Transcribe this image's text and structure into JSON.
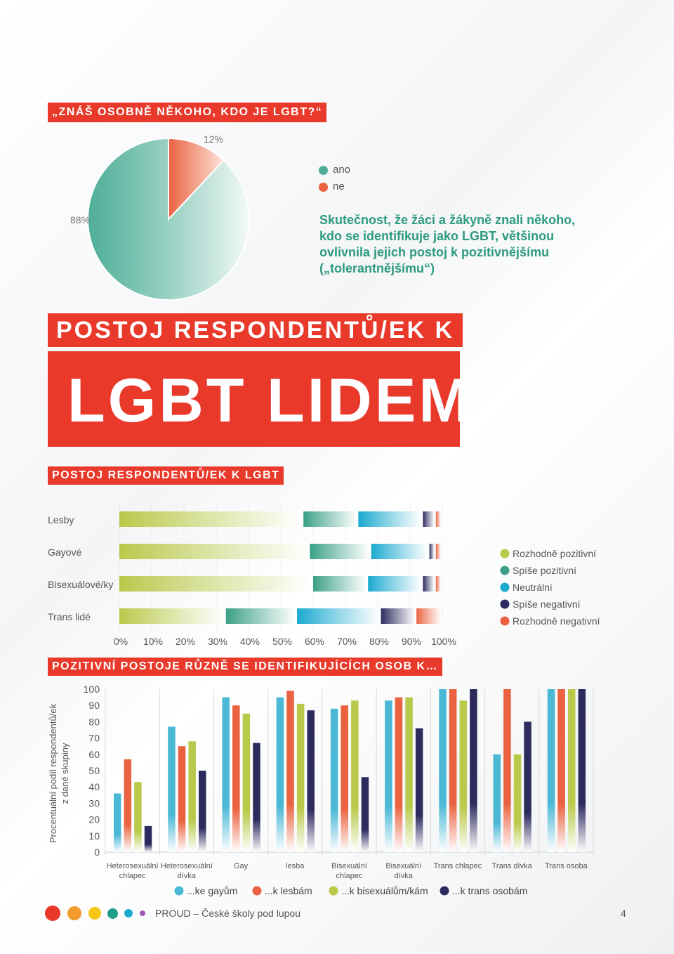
{
  "colors": {
    "red": "#e8392a",
    "teal": "#2d9b7c",
    "lime": "#b9c94a",
    "teal2": "#3a9f86",
    "cyan": "#1aa9cf",
    "navy": "#2d2a5e",
    "orange": "#ea6240",
    "lightblue": "#4bb8d6"
  },
  "pie_section": {
    "title": "„ZNÁŠ OSOBNĚ NĚKOHO, KDO JE LGBT?“",
    "note": "Skutečnost, že žáci a žákyně znali někoho, kdo se identifikuje jako LGBT, většinou ovlivnila jejich postoj k pozitivnějšímu („tolerantnějšímu“)"
  },
  "headline": {
    "line1": "POSTOJ RESPONDENTŮ/EK K",
    "line2": "LGBT LIDEM"
  },
  "bar_section": {
    "title": "POSTOJ RESPONDENTŮ/EK K LGBT"
  },
  "column_section": {
    "title": "POZITIVNÍ POSTOJE RŮZNĚ SE IDENTIFIKUJÍCÍCH OSOB K…"
  },
  "footer": {
    "text": "PROUD – České školy pod lupou",
    "page": "4",
    "dots": [
      "#e8392a",
      "#f29a2e",
      "#f5c518",
      "#1f9e87",
      "#1aa9cf",
      "#a05ab5"
    ]
  },
  "chart_data": [
    {
      "type": "pie",
      "slices": [
        {
          "label": "ano",
          "value": 88,
          "text": "88%",
          "color": "#4fae98"
        },
        {
          "label": "ne",
          "value": 12,
          "text": "12%",
          "color": "#ea6240"
        }
      ]
    },
    {
      "type": "bar",
      "orientation": "horizontal",
      "stacked": true,
      "categories": [
        "Lesby",
        "Gayové",
        "Bisexuálové/ky",
        "Trans lidé"
      ],
      "series": [
        {
          "name": "Rozhodně pozitivní",
          "color": "#b9c94a",
          "values": [
            57,
            59,
            60,
            33
          ]
        },
        {
          "name": "Spíše pozitivní",
          "color": "#3a9f86",
          "values": [
            17,
            19,
            17,
            22
          ]
        },
        {
          "name": "Neutrální",
          "color": "#1aa9cf",
          "values": [
            20,
            18,
            17,
            26
          ]
        },
        {
          "name": "Spíše negativní",
          "color": "#2d2a5e",
          "values": [
            4,
            2,
            4,
            11
          ]
        },
        {
          "name": "Rozhodně negativní",
          "color": "#ea6240",
          "values": [
            2,
            2,
            2,
            8
          ]
        }
      ],
      "xticks": [
        "0%",
        "10%",
        "20%",
        "30%",
        "40%",
        "50%",
        "60%",
        "70%",
        "80%",
        "90%",
        "100%"
      ],
      "xlim": [
        0,
        100
      ],
      "legend_position": "right"
    },
    {
      "type": "bar",
      "categories": [
        [
          "Heterosexuální",
          "chlapec"
        ],
        [
          "Heterosexuální",
          "dívka"
        ],
        [
          "Gay"
        ],
        [
          "lesba"
        ],
        [
          "Bisexuální",
          "chlapec"
        ],
        [
          "Bisexuální",
          "dívka"
        ],
        [
          "Trans chlapec"
        ],
        [
          "Trans dívka"
        ],
        [
          "Trans osoba"
        ]
      ],
      "series": [
        {
          "name": "...ke gayům",
          "color": "#4bb8d6",
          "values": [
            36,
            77,
            95,
            95,
            88,
            93,
            100,
            60,
            100
          ]
        },
        {
          "name": "...k lesbám",
          "color": "#ea6240",
          "values": [
            57,
            65,
            90,
            99,
            90,
            95,
            100,
            100,
            100
          ]
        },
        {
          "name": "...k bisexuálům/kám",
          "color": "#b9c94a",
          "values": [
            43,
            68,
            85,
            91,
            93,
            95,
            93,
            60,
            100
          ]
        },
        {
          "name": "...k trans osobám",
          "color": "#2d2a5e",
          "values": [
            16,
            50,
            67,
            87,
            46,
            76,
            100,
            80,
            100
          ]
        }
      ],
      "yticks": [
        "0",
        "10",
        "20",
        "30",
        "40",
        "50",
        "60",
        "70",
        "80",
        "90",
        "100"
      ],
      "ylim": [
        0,
        100
      ],
      "ylabel": [
        "Procentuální podíl respondentů/ek",
        "z dané skupiny"
      ],
      "legend_position": "bottom"
    }
  ]
}
